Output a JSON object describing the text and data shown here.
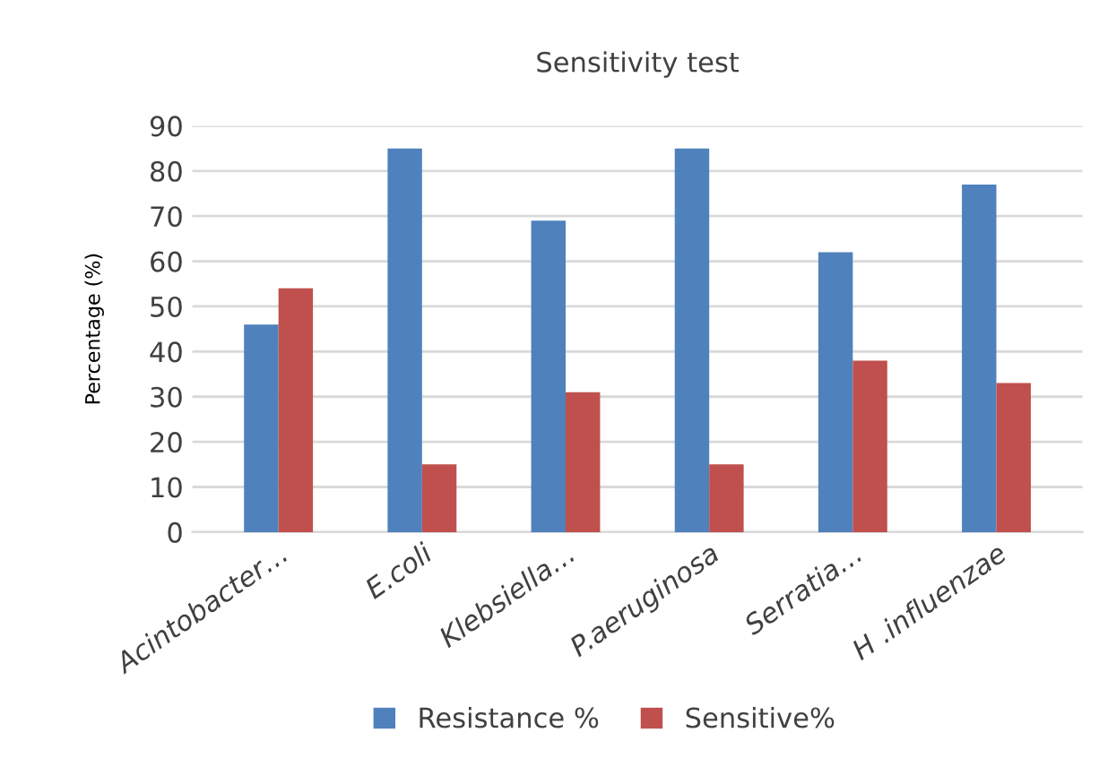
{
  "chart_data": {
    "type": "bar",
    "title": "Sensitivity test",
    "ylabel": "Percentage (%)",
    "categories": [
      "Acintobacter…",
      "E.coli",
      "Klebsiella…",
      "P.aeruginosa",
      "Serratia…",
      "H .influenzae"
    ],
    "series": [
      {
        "name": "Resistance %",
        "color": "#4f81bd",
        "values": [
          46,
          85,
          69,
          85,
          62,
          77
        ]
      },
      {
        "name": "Sensitive%",
        "color": "#c0504d",
        "values": [
          54,
          15,
          31,
          15,
          38,
          33
        ]
      }
    ],
    "ylim": [
      0,
      90
    ],
    "yticks": [
      0,
      10,
      20,
      30,
      40,
      50,
      60,
      70,
      80,
      90
    ],
    "grid": "y",
    "legend": "bottom"
  }
}
